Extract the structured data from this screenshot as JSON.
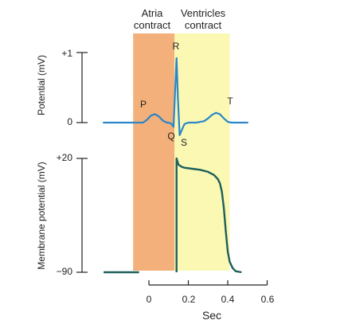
{
  "chart_data": {
    "type": "line",
    "colors": {
      "atria_band": "#f4b07a",
      "ventricles_band": "#fbf8b4",
      "ecg_line": "#2a86c8",
      "ap_line": "#1e5f5a",
      "axes": "#222222"
    },
    "shared_x_axis": {
      "label": "Sec",
      "ticks": [
        0,
        0.2,
        0.4,
        0.6
      ],
      "tick_labels": [
        "0",
        "0.2",
        "0.4",
        "0.6"
      ],
      "range": [
        -0.23,
        0.62
      ]
    },
    "bands": [
      {
        "label_line1": "Atria",
        "label_line2": "contract",
        "x_start": -0.08,
        "x_end": 0.13
      },
      {
        "label_line1": "Ventricles",
        "label_line2": "contract",
        "x_start": 0.13,
        "x_end": 0.41
      }
    ],
    "panels": [
      {
        "ylabel": "Potential (mV)",
        "ylim": [
          -0.4,
          1.2
        ],
        "ticks": [
          0,
          1
        ],
        "tick_labels": [
          "0",
          "+1"
        ],
        "series": [
          {
            "x": [
              -0.23,
              -0.03,
              -0.01,
              0.01,
              0.03,
              0.05,
              0.07,
              0.09,
              0.1,
              0.115,
              0.125,
              0.133,
              0.14,
              0.147,
              0.156,
              0.165,
              0.18,
              0.2,
              0.24,
              0.28,
              0.3,
              0.32,
              0.34,
              0.36,
              0.38,
              0.4,
              0.42,
              0.5
            ],
            "y": [
              0,
              0,
              0.04,
              0.1,
              0.12,
              0.09,
              0.03,
              0,
              0,
              -0.02,
              -0.06,
              0.45,
              0.92,
              0.35,
              -0.18,
              -0.12,
              -0.02,
              0,
              0,
              0.02,
              0.06,
              0.11,
              0.14,
              0.12,
              0.06,
              0.01,
              0,
              0
            ]
          }
        ],
        "point_labels": [
          {
            "text": "P",
            "x": 0.03,
            "y": 0.12
          },
          {
            "text": "Q",
            "x": 0.125,
            "y": -0.06
          },
          {
            "text": "R",
            "x": 0.14,
            "y": 0.92
          },
          {
            "text": "S",
            "x": 0.156,
            "y": -0.18
          },
          {
            "text": "T",
            "x": 0.34,
            "y": 0.14
          }
        ]
      },
      {
        "ylabel": "Membrane potential (mV)",
        "ylim": [
          -90,
          20
        ],
        "ticks": [
          -90,
          20
        ],
        "tick_labels": [
          "−90",
          "+20"
        ],
        "series": [
          {
            "segments": [
              {
                "x": [
                  -0.23,
                  -0.05
                ],
                "y": [
                  -90,
                  -90
                ]
              },
              {
                "x": [
                  0.14,
                  0.14,
                  0.14,
                  0.15,
                  0.165,
                  0.18,
                  0.22,
                  0.26,
                  0.3,
                  0.33,
                  0.35,
                  0.36,
                  0.37,
                  0.38,
                  0.39,
                  0.4,
                  0.41,
                  0.425,
                  0.44,
                  0.47
                ],
                "y": [
                  -90,
                  20,
                  20,
                  14,
                  12,
                  11,
                  10,
                  9,
                  7,
                  4,
                  0,
                  -4,
                  -12,
                  -28,
                  -50,
                  -70,
                  -80,
                  -86,
                  -89,
                  -90
                ]
              }
            ]
          }
        ]
      }
    ]
  }
}
